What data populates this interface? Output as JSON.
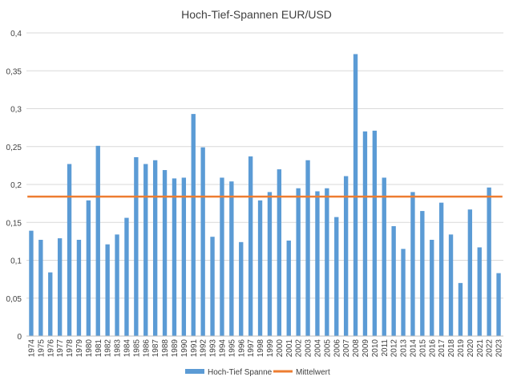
{
  "chart_data": {
    "type": "bar",
    "title": "Hoch-Tief-Spannen EUR/USD",
    "xlabel": "",
    "ylabel": "",
    "ylim": [
      0,
      0.4
    ],
    "y_ticks": [
      "0",
      "0,05",
      "0,1",
      "0,15",
      "0,2",
      "0,25",
      "0,3",
      "0,35",
      "0,4"
    ],
    "grid": true,
    "legend_position": "bottom",
    "categories": [
      "1974",
      "1975",
      "1976",
      "1977",
      "1978",
      "1979",
      "1980",
      "1981",
      "1982",
      "1983",
      "1984",
      "1985",
      "1986",
      "1987",
      "1988",
      "1989",
      "1990",
      "1991",
      "1992",
      "1993",
      "1994",
      "1995",
      "1996",
      "1997",
      "1998",
      "1999",
      "2000",
      "2001",
      "2002",
      "2003",
      "2004",
      "2005",
      "2006",
      "2007",
      "2008",
      "2009",
      "2010",
      "2011",
      "2012",
      "2013",
      "2014",
      "2015",
      "2016",
      "2017",
      "2018",
      "2019",
      "2020",
      "2021",
      "2022",
      "2023"
    ],
    "series": [
      {
        "name": "Hoch-Tief Spanne",
        "kind": "bar",
        "color": "#5b9bd5",
        "values": [
          0.139,
          0.127,
          0.084,
          0.129,
          0.227,
          0.127,
          0.179,
          0.251,
          0.121,
          0.134,
          0.156,
          0.236,
          0.227,
          0.232,
          0.219,
          0.208,
          0.209,
          0.293,
          0.249,
          0.131,
          0.209,
          0.204,
          0.124,
          0.237,
          0.179,
          0.19,
          0.22,
          0.126,
          0.195,
          0.232,
          0.191,
          0.195,
          0.157,
          0.211,
          0.372,
          0.27,
          0.271,
          0.209,
          0.145,
          0.115,
          0.19,
          0.165,
          0.127,
          0.176,
          0.134,
          0.07,
          0.167,
          0.117,
          0.196,
          0.083
        ]
      },
      {
        "name": "Mittelwert",
        "kind": "line",
        "color": "#ed7d31",
        "value": 0.184
      }
    ]
  }
}
